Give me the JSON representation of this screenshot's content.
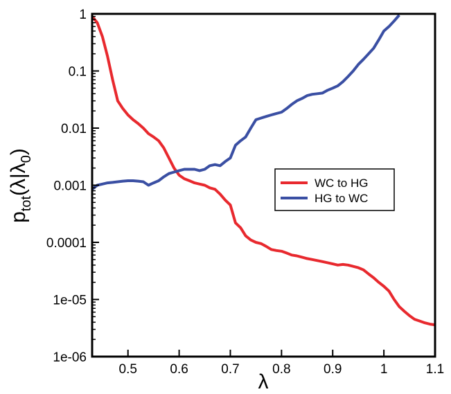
{
  "chart_data": {
    "type": "line",
    "title": "",
    "xlabel": "λ",
    "ylabel": {
      "main": "p",
      "sub": "tot",
      "paren_open": "(λ|λ",
      "sub0": "0",
      "paren_close": ")"
    },
    "xlim": [
      0.43,
      1.1
    ],
    "ylim": [
      1e-06,
      1
    ],
    "yscale": "log",
    "grid": false,
    "legend_position": "center-right",
    "xticks": [
      {
        "value": 0.5,
        "label": "0.5"
      },
      {
        "value": 0.6,
        "label": "0.6"
      },
      {
        "value": 0.7,
        "label": "0.7"
      },
      {
        "value": 0.8,
        "label": "0.8"
      },
      {
        "value": 0.9,
        "label": "0.9"
      },
      {
        "value": 1.0,
        "label": "1"
      },
      {
        "value": 1.1,
        "label": "1.1"
      }
    ],
    "yticks": [
      {
        "value": 1,
        "label": "1"
      },
      {
        "value": 0.1,
        "label": "0.1"
      },
      {
        "value": 0.01,
        "label": "0.01"
      },
      {
        "value": 0.001,
        "label": "0.001"
      },
      {
        "value": 0.0001,
        "label": "0.0001"
      },
      {
        "value": 1e-05,
        "label": "1e-05"
      },
      {
        "value": 1e-06,
        "label": "1e-06"
      }
    ],
    "series": [
      {
        "name": "WC to HG",
        "color": "#e8292e",
        "x": [
          0.43,
          0.44,
          0.45,
          0.46,
          0.47,
          0.48,
          0.49,
          0.5,
          0.51,
          0.52,
          0.53,
          0.54,
          0.55,
          0.56,
          0.57,
          0.58,
          0.59,
          0.6,
          0.61,
          0.62,
          0.63,
          0.64,
          0.65,
          0.66,
          0.67,
          0.68,
          0.69,
          0.7,
          0.71,
          0.72,
          0.73,
          0.74,
          0.75,
          0.76,
          0.77,
          0.78,
          0.79,
          0.8,
          0.81,
          0.82,
          0.83,
          0.84,
          0.85,
          0.86,
          0.87,
          0.88,
          0.89,
          0.9,
          0.91,
          0.92,
          0.93,
          0.94,
          0.95,
          0.96,
          0.97,
          0.98,
          0.99,
          1.0,
          1.01,
          1.02,
          1.03,
          1.04,
          1.05,
          1.06,
          1.07,
          1.08,
          1.09,
          1.1
        ],
        "y": [
          0.9,
          0.7,
          0.4,
          0.18,
          0.07,
          0.03,
          0.022,
          0.017,
          0.014,
          0.012,
          0.01,
          0.008,
          0.007,
          0.006,
          0.0045,
          0.003,
          0.002,
          0.0015,
          0.0013,
          0.0012,
          0.0011,
          0.00105,
          0.001,
          0.0009,
          0.00085,
          0.0007,
          0.00055,
          0.00045,
          0.00022,
          0.00018,
          0.00013,
          0.00011,
          0.0001,
          9.5e-05,
          8.5e-05,
          7.5e-05,
          7.2e-05,
          7e-05,
          6.5e-05,
          6e-05,
          5.8e-05,
          5.5e-05,
          5.2e-05,
          5e-05,
          4.8e-05,
          4.6e-05,
          4.4e-05,
          4.2e-05,
          4e-05,
          4.1e-05,
          4e-05,
          3.8e-05,
          3.6e-05,
          3.3e-05,
          2.8e-05,
          2.4e-05,
          2e-05,
          1.7e-05,
          1.4e-05,
          1e-05,
          7.5e-06,
          6.2e-06,
          5.2e-06,
          4.5e-06,
          4.2e-06,
          3.9e-06,
          3.7e-06,
          3.6e-06
        ]
      },
      {
        "name": "HG to WC",
        "color": "#3a4fa3",
        "x": [
          0.43,
          0.44,
          0.45,
          0.46,
          0.47,
          0.48,
          0.49,
          0.5,
          0.51,
          0.52,
          0.53,
          0.54,
          0.55,
          0.56,
          0.57,
          0.58,
          0.59,
          0.6,
          0.61,
          0.62,
          0.63,
          0.64,
          0.65,
          0.66,
          0.67,
          0.68,
          0.69,
          0.7,
          0.71,
          0.72,
          0.73,
          0.74,
          0.75,
          0.76,
          0.77,
          0.78,
          0.79,
          0.8,
          0.81,
          0.82,
          0.83,
          0.84,
          0.85,
          0.86,
          0.87,
          0.88,
          0.89,
          0.9,
          0.91,
          0.92,
          0.93,
          0.94,
          0.95,
          0.96,
          0.97,
          0.98,
          0.99,
          1.0,
          1.01,
          1.02,
          1.03
        ],
        "y": [
          0.00085,
          0.001,
          0.00105,
          0.0011,
          0.00112,
          0.00115,
          0.00118,
          0.0012,
          0.0012,
          0.00118,
          0.00115,
          0.001,
          0.0011,
          0.0012,
          0.0014,
          0.0016,
          0.0017,
          0.0018,
          0.0019,
          0.0019,
          0.0019,
          0.0018,
          0.0019,
          0.0022,
          0.0023,
          0.0022,
          0.0026,
          0.003,
          0.005,
          0.006,
          0.007,
          0.01,
          0.014,
          0.015,
          0.016,
          0.017,
          0.018,
          0.019,
          0.022,
          0.026,
          0.03,
          0.033,
          0.037,
          0.039,
          0.04,
          0.041,
          0.046,
          0.05,
          0.055,
          0.065,
          0.08,
          0.1,
          0.13,
          0.16,
          0.2,
          0.25,
          0.35,
          0.5,
          0.6,
          0.75,
          0.95
        ]
      }
    ]
  }
}
